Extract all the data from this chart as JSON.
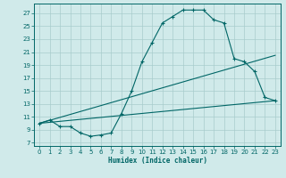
{
  "title": "",
  "xlabel": "Humidex (Indice chaleur)",
  "ylabel": "",
  "bg_color": "#d0eaea",
  "grid_color": "#a8cccc",
  "line_color": "#006666",
  "xlim": [
    -0.5,
    23.5
  ],
  "ylim": [
    6.5,
    28.5
  ],
  "xticks": [
    0,
    1,
    2,
    3,
    4,
    5,
    6,
    7,
    8,
    9,
    10,
    11,
    12,
    13,
    14,
    15,
    16,
    17,
    18,
    19,
    20,
    21,
    22,
    23
  ],
  "yticks": [
    7,
    9,
    11,
    13,
    15,
    17,
    19,
    21,
    23,
    25,
    27
  ],
  "curve1_x": [
    0,
    1,
    2,
    3,
    4,
    5,
    6,
    7,
    8,
    9,
    10,
    11,
    12,
    13,
    14,
    15,
    16,
    17,
    18,
    19,
    20,
    21,
    22,
    23
  ],
  "curve1_y": [
    10.0,
    10.5,
    9.5,
    9.5,
    8.5,
    8.0,
    8.2,
    8.5,
    11.5,
    15.0,
    19.5,
    22.5,
    25.5,
    26.5,
    27.5,
    27.5,
    27.5,
    26.0,
    25.5,
    20.0,
    19.5,
    18.0,
    14.0,
    13.5
  ],
  "line2_x": [
    0,
    23
  ],
  "line2_y": [
    10.0,
    20.5
  ],
  "line3_x": [
    0,
    23
  ],
  "line3_y": [
    10.0,
    13.5
  ],
  "xlabel_fontsize": 5.5,
  "tick_fontsize": 5
}
